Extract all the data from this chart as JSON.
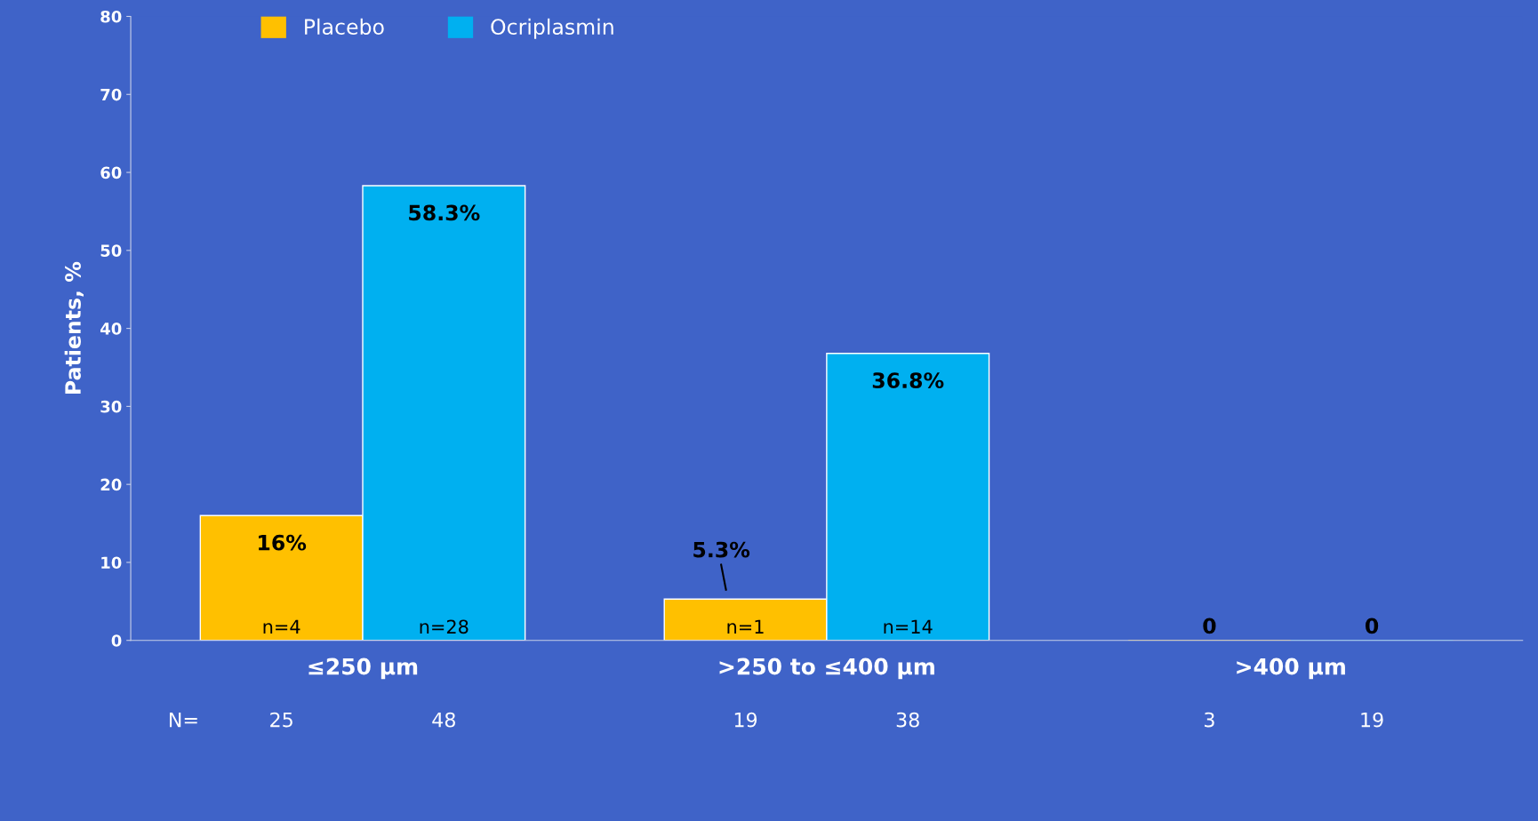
{
  "chart_data": {
    "type": "bar",
    "ylabel": "Patients, %",
    "categories": [
      "≤250 µm",
      ">250 to ≤400 µm",
      ">400 µm"
    ],
    "series": [
      {
        "name": "Placebo",
        "color": "#ffc000",
        "values": [
          16,
          5.3,
          0
        ],
        "value_labels": [
          "16%",
          "5.3%",
          "0"
        ]
      },
      {
        "name": "Ocriplasmin",
        "color": "#00b0f0",
        "values": [
          58.3,
          36.8,
          0
        ],
        "value_labels": [
          "58.3%",
          "36.8%",
          "0"
        ]
      }
    ],
    "ylim": [
      0,
      80
    ],
    "yticks": [
      0,
      10,
      20,
      30,
      40,
      50,
      60,
      70,
      80
    ],
    "grid": false,
    "legend": "top left",
    "annotations": [
      "n=4",
      "n=28",
      "n=1",
      "n=14",
      "N=",
      "25",
      "48",
      "19",
      "38",
      "3",
      "19"
    ]
  }
}
